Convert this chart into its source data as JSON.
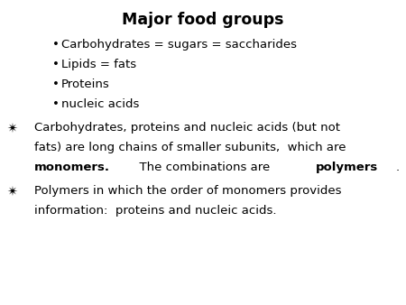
{
  "title": "Major food groups",
  "background_color": "#ffffff",
  "text_color": "#000000",
  "title_fontsize": 12.5,
  "body_fontsize": 9.5,
  "bullet_items": [
    "Carbohydrates = sugars = saccharides",
    "Lipids = fats",
    "Proteins",
    "nucleic acids"
  ],
  "figwidth": 4.5,
  "figheight": 3.38,
  "dpi": 100
}
